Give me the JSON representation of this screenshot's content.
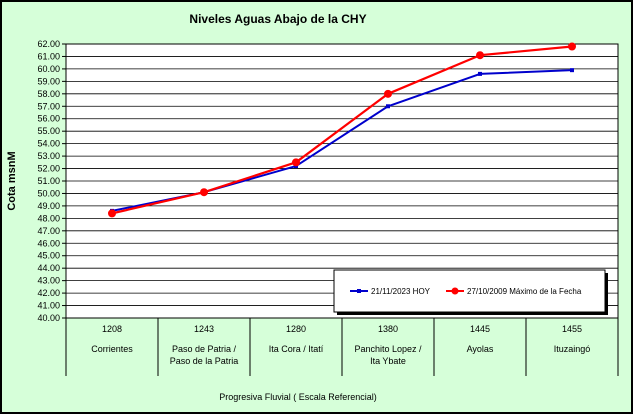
{
  "chart_data": {
    "type": "line",
    "title": "Niveles Aguas Abajo de la CHY",
    "ylabel": "Cota msnM",
    "xlabel": "Progresiva Fluvial ( Escala Referencial)",
    "ylim": [
      40,
      62
    ],
    "ytick_step": 1,
    "grid": true,
    "legend_position": "inside-bottom-right",
    "categories": [
      {
        "code": "1208",
        "name": [
          "Corrientes"
        ]
      },
      {
        "code": "1243",
        "name": [
          "Paso de Patria /",
          "Paso de la Patria"
        ]
      },
      {
        "code": "1280",
        "name": [
          "Ita Cora / Itatí"
        ]
      },
      {
        "code": "1380",
        "name": [
          "Panchito Lopez /",
          "Ita Ybate"
        ]
      },
      {
        "code": "1445",
        "name": [
          "Ayolas"
        ]
      },
      {
        "code": "1455",
        "name": [
          "Ituzaingó"
        ]
      }
    ],
    "series": [
      {
        "name": "21/11/2023 HOY",
        "color": "#0000cc",
        "values": [
          48.6,
          50.1,
          52.2,
          57.0,
          59.6,
          59.9
        ]
      },
      {
        "name": "27/10/2009 Máximo de la Fecha",
        "color": "#ff0000",
        "values": [
          48.4,
          50.1,
          52.5,
          58.0,
          61.1,
          61.8
        ]
      }
    ]
  }
}
